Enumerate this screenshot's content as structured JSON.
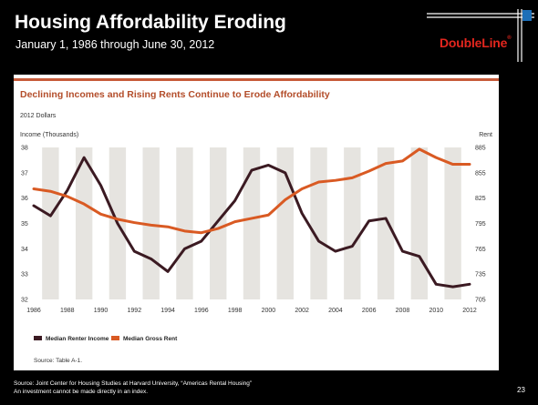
{
  "slide": {
    "title": "Housing Affordability Eroding",
    "subtitle": "January 1, 1986 through June 30, 2012",
    "logo_text": "DoubleLine",
    "logo_reg": "®",
    "source": "Source: Joint Center for Housing Studies at Harvard University, “Americas Rental Housing”",
    "note": "An investment cannot be made directly in an index.",
    "page_number": "23"
  },
  "colors": {
    "background": "#000000",
    "panel": "#ffffff",
    "band": "#e6e4e0",
    "income_line": "#3b1a22",
    "rent_line": "#d95a23",
    "accent_bar": "#c75b3a",
    "logo_red": "#e3261e"
  },
  "chart_data": {
    "type": "line",
    "title": "Declining Incomes and Rising Rents Continue to Erode Affordability",
    "subtitle": "2012 Dollars",
    "y_left_label": "Income (Thousands)",
    "y_right_label": "Rent",
    "ylim_left": [
      32,
      38
    ],
    "ylim_right": [
      705,
      885
    ],
    "y_left_ticks": [
      "32",
      "33",
      "34",
      "35",
      "36",
      "37",
      "38"
    ],
    "y_right_ticks": [
      "705",
      "735",
      "765",
      "795",
      "825",
      "855",
      "885"
    ],
    "x_ticks": [
      "1986",
      "1988",
      "1990",
      "1992",
      "1994",
      "1996",
      "1998",
      "2000",
      "2002",
      "2004",
      "2006",
      "2008",
      "2010",
      "2012"
    ],
    "grid": false,
    "legend_position": "bottom-left",
    "series": [
      {
        "name": "Median Renter Income",
        "axis": "left",
        "color": "#3b1a22",
        "x": [
          1986,
          1987,
          1988,
          1989,
          1990,
          1991,
          1992,
          1993,
          1994,
          1995,
          1996,
          1997,
          1998,
          1999,
          2000,
          2001,
          2002,
          2003,
          2004,
          2005,
          2006,
          2007,
          2008,
          2009,
          2010,
          2011,
          2012
        ],
        "values": [
          35.7,
          35.3,
          36.3,
          37.6,
          36.5,
          35.0,
          33.9,
          33.6,
          33.1,
          34.0,
          34.3,
          35.1,
          35.9,
          37.1,
          37.3,
          37.0,
          35.4,
          34.3,
          33.9,
          34.1,
          35.1,
          35.2,
          33.9,
          33.7,
          32.6,
          32.5,
          32.6
        ]
      },
      {
        "name": "Median Gross Rent",
        "axis": "right",
        "color": "#d95a23",
        "x": [
          1986,
          1987,
          1988,
          1989,
          1990,
          1991,
          1992,
          1993,
          1994,
          1995,
          1996,
          1997,
          1998,
          1999,
          2000,
          2001,
          2002,
          2003,
          2004,
          2005,
          2006,
          2007,
          2008,
          2009,
          2010,
          2011,
          2012
        ],
        "values": [
          836,
          833,
          827,
          818,
          806,
          800,
          796,
          793,
          791,
          786,
          784,
          789,
          797,
          801,
          805,
          823,
          836,
          844,
          846,
          849,
          857,
          866,
          869,
          883,
          873,
          865,
          865
        ]
      }
    ],
    "source_note": "Source: Table A-1."
  }
}
